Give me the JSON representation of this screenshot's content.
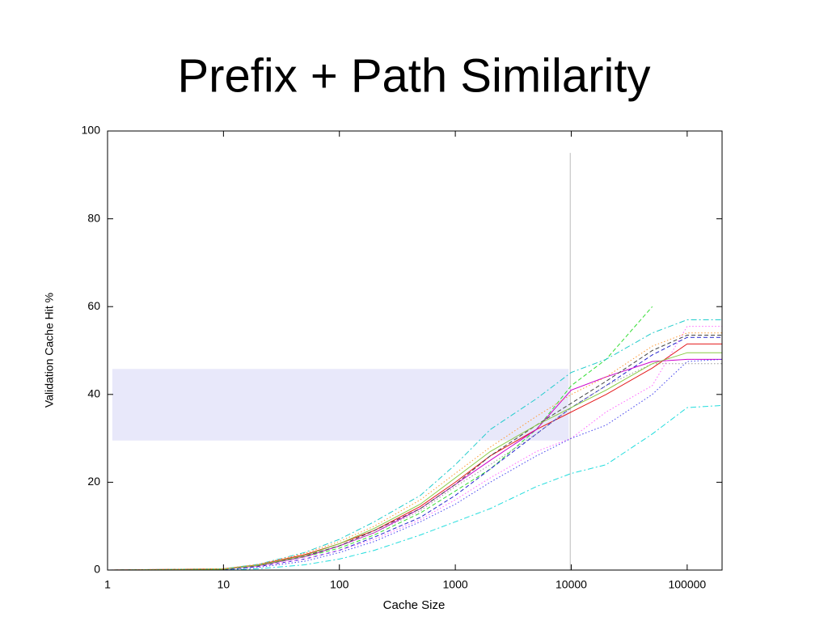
{
  "chart_data": {
    "type": "line",
    "title": "Prefix + Path Similarity",
    "x_label": "Cache Size",
    "y_label": "Validation Cache Hit %",
    "x_scale": "log",
    "xlim": [
      1,
      200000
    ],
    "ylim": [
      0,
      100
    ],
    "xticks": [
      1,
      10,
      100,
      1000,
      10000,
      100000
    ],
    "yticks": [
      0,
      20,
      40,
      60,
      80,
      100
    ],
    "band": {
      "color": "#e8e8fa",
      "xlim": [
        1.1,
        9500
      ],
      "ylim": [
        29.5,
        45.8
      ]
    },
    "vline": {
      "color": "#bbbbbb",
      "x": 9800,
      "ylim": [
        0,
        95
      ]
    },
    "x": [
      1,
      10,
      20,
      50,
      100,
      200,
      500,
      1000,
      2000,
      5000,
      10000,
      20000,
      50000,
      100000,
      200000
    ],
    "series": [
      {
        "color": "#e41a1c",
        "style": "solid",
        "values": [
          0,
          0.3,
          1.2,
          3.5,
          6,
          9,
          14.5,
          20,
          26,
          32,
          36,
          40,
          46,
          51.5,
          51.5
        ]
      },
      {
        "color": "#33dd33",
        "style": "dashed",
        "values": [
          0,
          0.2,
          1,
          3,
          5,
          8,
          13,
          18,
          23,
          32,
          42,
          48,
          60,
          null,
          null
        ]
      },
      {
        "color": "#2222cc",
        "style": "dashed",
        "values": [
          0,
          0.1,
          0.8,
          2.5,
          4.5,
          7.5,
          12,
          17,
          23,
          31,
          37,
          42,
          49,
          53,
          53
        ]
      },
      {
        "color": "#cc00cc",
        "style": "solid",
        "values": [
          0,
          0.2,
          1,
          3,
          5.5,
          8.5,
          14,
          19.5,
          25,
          32,
          41,
          44,
          47.5,
          48,
          48
        ]
      },
      {
        "color": "#22cccc",
        "style": "dashdot",
        "values": [
          0,
          0.3,
          1.3,
          4,
          7,
          11,
          17,
          24,
          32,
          39,
          45,
          48,
          54,
          57,
          57
        ]
      },
      {
        "color": "#22dddd",
        "style": "dashdot",
        "values": [
          0,
          0,
          0.3,
          1.2,
          2.5,
          4.5,
          8,
          11,
          14,
          19,
          22,
          24,
          31,
          37,
          37.5
        ]
      },
      {
        "color": "#ff66ff",
        "style": "dotted",
        "values": [
          0,
          0.1,
          0.8,
          2.5,
          4.5,
          7,
          11.5,
          16,
          21,
          27,
          30,
          36,
          42,
          55.5,
          55.5
        ]
      },
      {
        "color": "#4444ee",
        "style": "dotted",
        "values": [
          0,
          0.1,
          0.6,
          2,
          4,
          6.5,
          11,
          15,
          20,
          26,
          30,
          33,
          40,
          47.5,
          48
        ]
      },
      {
        "color": "#999999",
        "style": "dotted",
        "values": [
          0,
          0.2,
          1,
          3,
          5.5,
          8.5,
          13.5,
          19,
          24,
          31,
          37,
          42,
          47,
          47,
          47
        ]
      },
      {
        "color": "#444444",
        "style": "dashed",
        "values": [
          0,
          0.2,
          1,
          3.2,
          5.5,
          9,
          14,
          19.5,
          26,
          33,
          38,
          43,
          50,
          53.5,
          53.5
        ]
      },
      {
        "color": "#88cc44",
        "style": "solid",
        "values": [
          0,
          0.2,
          1.1,
          3.3,
          6,
          9.5,
          15,
          21,
          27,
          33,
          37,
          41,
          47,
          49.5,
          49.5
        ]
      },
      {
        "color": "#ff9933",
        "style": "dotted",
        "values": [
          0,
          0.3,
          1.3,
          3.8,
          6.5,
          10,
          16,
          22,
          28,
          35,
          40,
          44,
          51,
          54,
          54
        ]
      }
    ]
  }
}
